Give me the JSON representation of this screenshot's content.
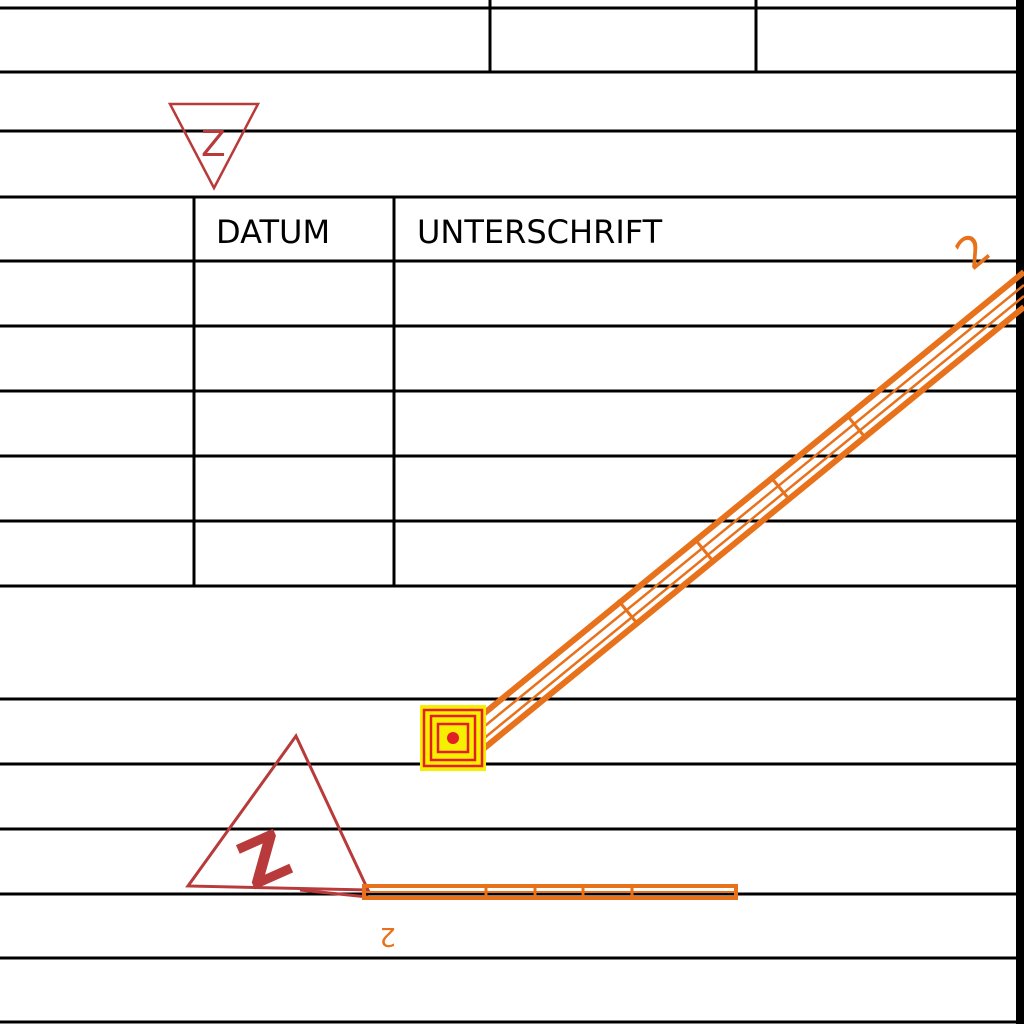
{
  "table": {
    "header_datum": "DATUM",
    "header_unterschrift": "UNTERSCHRIFT"
  },
  "symbols": {
    "triangle_top_letter": "Z",
    "triangle_bottom_letter": "Z",
    "diagonal_line_label": "2",
    "horizontal_line_label": "2",
    "node_icon": "target-square-icon"
  },
  "colors": {
    "grid": "#000000",
    "triangle": "#b83a3a",
    "line": "#e8711c",
    "node_fill": "#f7ef00",
    "node_stroke": "#e31e24"
  }
}
